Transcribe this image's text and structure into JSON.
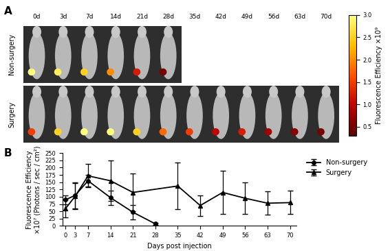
{
  "chart_data": [
    {
      "type": "image_grid",
      "label": "A",
      "columns": [
        "0d",
        "3d",
        "7d",
        "14d",
        "21d",
        "28d",
        "35d",
        "42d",
        "49d",
        "56d",
        "63d",
        "70d"
      ],
      "rows": [
        {
          "name": "Non-surgery",
          "values": [
            3.0,
            2.8,
            2.5,
            2.0,
            1.2,
            0.5
          ]
        },
        {
          "name": "Surgery",
          "values": [
            1.5,
            2.5,
            3.0,
            3.0,
            2.5,
            1.8,
            1.5,
            1.0,
            1.2,
            0.8,
            0.6,
            0.5
          ]
        }
      ],
      "colorbar_label": "Fluorescence Efficiency ×10⁹",
      "colorbar_lim": [
        0.3,
        3.0
      ],
      "colorbar_ticks": [
        {
          "value": 0.5,
          "label": "0.5"
        },
        {
          "value": 1.0,
          "label": "1.0"
        },
        {
          "value": 1.5,
          "label": "1.5"
        },
        {
          "value": 2.0,
          "label": "2.0"
        },
        {
          "value": 2.5,
          "label": "2.5"
        },
        {
          "value": 3.0,
          "label": "3.0"
        }
      ]
    },
    {
      "type": "line",
      "label": "B",
      "x_label": "Days post injection",
      "y_label": "Fluorescence Efficiency\n×10⁷ (Photons / sec / cm²)",
      "xlim": [
        -1,
        72
      ],
      "xticks": [
        0,
        3,
        7,
        14,
        21,
        28,
        35,
        42,
        49,
        56,
        63,
        70
      ],
      "ylim": [
        0,
        250
      ],
      "yticks": [
        0,
        25,
        50,
        75,
        100,
        125,
        150,
        175,
        200,
        225,
        250
      ],
      "legend": "upper left",
      "series": [
        {
          "name": "Non-surgery",
          "color": "#000000",
          "marker": "circle",
          "x": [
            0,
            3,
            7,
            14,
            21,
            28
          ],
          "values": [
            90,
            105,
            155,
            97,
            47,
            7
          ],
          "errors": [
            15,
            45,
            20,
            25,
            25,
            3
          ]
        },
        {
          "name": "Surgery",
          "color": "#000000",
          "marker": "triangle",
          "x": [
            0,
            3,
            7,
            14,
            21,
            35,
            42,
            49,
            56,
            63,
            70
          ],
          "values": [
            60,
            102,
            172,
            155,
            115,
            137,
            70,
            115,
            95,
            78,
            80
          ],
          "errors": [
            30,
            45,
            40,
            70,
            65,
            80,
            35,
            75,
            55,
            40,
            40
          ]
        }
      ]
    }
  ]
}
